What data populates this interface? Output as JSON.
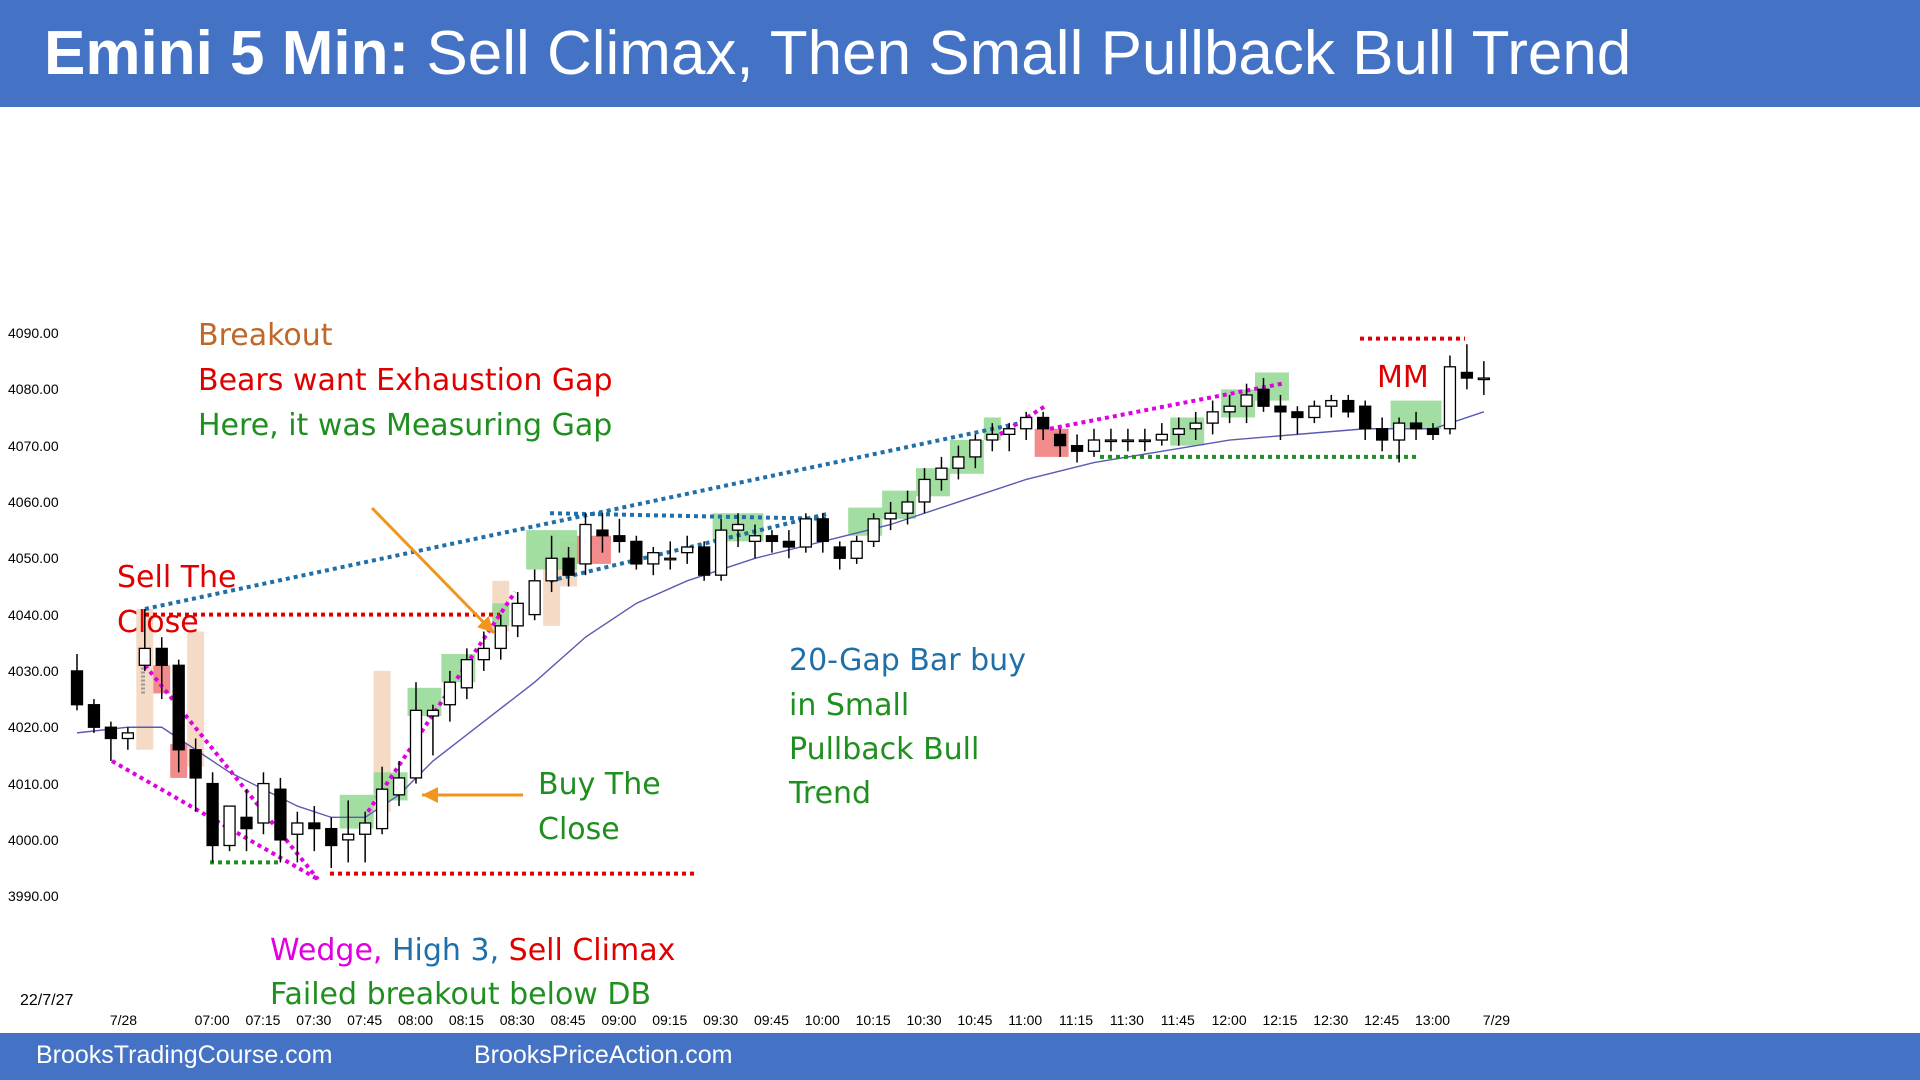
{
  "header": {
    "title_bold": "Emini 5 Min:",
    "title_rest": "Sell Climax, Then Small Pullback Bull Trend"
  },
  "footer": {
    "link1": "BrooksTradingCourse.com",
    "link2": "BrooksPriceAction.com"
  },
  "colors": {
    "header": "#4472c4",
    "bull_box": "#92d892",
    "bear_box": "#f07878",
    "tan_box": "#f3d3bb",
    "ema": "#5a5ab4",
    "magenta": "#e000e0",
    "blue_dots": "#1f6fa8",
    "red_dots": "#e00000",
    "green_dots": "#1f8f1f"
  },
  "chart_data": {
    "type": "candlestick",
    "title": "Emini 5 Min: Sell Climax, Then Small Pullback Bull Trend",
    "date_label": "22/7/27",
    "ylim": [
      3985,
      4100
    ],
    "y_ticks": [
      "4090.00",
      "4080.00",
      "4070.00",
      "4060.00",
      "4050.00",
      "4040.00",
      "4030.00",
      "4020.00",
      "4010.00",
      "4000.00",
      "3990.00"
    ],
    "y_tick_values": [
      4090,
      4080,
      4070,
      4060,
      4050,
      4040,
      4030,
      4020,
      4010,
      4000,
      3990
    ],
    "x_ticks": [
      "7/28",
      "07:00",
      "07:15",
      "07:30",
      "07:45",
      "08:00",
      "08:15",
      "08:30",
      "08:45",
      "09:00",
      "09:15",
      "09:30",
      "09:45",
      "10:00",
      "10:15",
      "10:30",
      "10:45",
      "11:00",
      "11:15",
      "11:30",
      "11:45",
      "12:00",
      "12:15",
      "12:30",
      "12:45",
      "13:00",
      "7/29"
    ],
    "x_tick_bars": [
      3,
      8,
      11,
      14,
      17,
      20,
      23,
      26,
      29,
      32,
      35,
      38,
      41,
      44,
      47,
      50,
      53,
      56,
      59,
      62,
      65,
      68,
      71,
      74,
      77,
      80,
      84
    ],
    "bars": [
      [
        4030,
        4033,
        4023,
        4024
      ],
      [
        4024,
        4025,
        4019,
        4020
      ],
      [
        4020,
        4021,
        4014,
        4018
      ],
      [
        4018,
        4020,
        4016,
        4019
      ],
      [
        4031,
        4041,
        4030,
        4034
      ],
      [
        4034,
        4036,
        4025,
        4031
      ],
      [
        4031,
        4032,
        4012,
        4016
      ],
      [
        4016,
        4018,
        4005,
        4011
      ],
      [
        4010,
        4012,
        3996,
        3999
      ],
      [
        3999,
        4006,
        3998,
        4006
      ],
      [
        4004,
        4009,
        3998,
        4002
      ],
      [
        4003,
        4012,
        4001,
        4010
      ],
      [
        4009,
        4011,
        3996,
        4000
      ],
      [
        4001,
        4005,
        3996,
        4003
      ],
      [
        4003,
        4006,
        3998,
        4002
      ],
      [
        4002,
        4004,
        3995,
        3999
      ],
      [
        4000,
        4007,
        3996,
        4001
      ],
      [
        4001,
        4005,
        3996,
        4003
      ],
      [
        4002,
        4013,
        4001,
        4009
      ],
      [
        4008,
        4014,
        4006,
        4011
      ],
      [
        4011,
        4028,
        4010,
        4023
      ],
      [
        4022,
        4024,
        4015,
        4023
      ],
      [
        4024,
        4030,
        4021,
        4028
      ],
      [
        4027,
        4034,
        4025,
        4032
      ],
      [
        4032,
        4037,
        4030,
        4034
      ],
      [
        4034,
        4040,
        4032,
        4038
      ],
      [
        4038,
        4044,
        4036,
        4042
      ],
      [
        4040,
        4048,
        4039,
        4046
      ],
      [
        4046,
        4054,
        4044,
        4050
      ],
      [
        4050,
        4052,
        4045,
        4047
      ],
      [
        4049,
        4058,
        4047,
        4056
      ],
      [
        4055,
        4058,
        4051,
        4054
      ],
      [
        4054,
        4057,
        4051,
        4053
      ],
      [
        4053,
        4054,
        4048,
        4049
      ],
      [
        4049,
        4052,
        4047,
        4051
      ],
      [
        4050,
        4053,
        4048,
        4050
      ],
      [
        4051,
        4054,
        4049,
        4052
      ],
      [
        4052,
        4053,
        4046,
        4047
      ],
      [
        4047,
        4057,
        4046,
        4055
      ],
      [
        4055,
        4058,
        4052,
        4056
      ],
      [
        4053,
        4056,
        4050,
        4054
      ],
      [
        4054,
        4055,
        4051,
        4053
      ],
      [
        4053,
        4055,
        4050,
        4052
      ],
      [
        4052,
        4058,
        4051,
        4057
      ],
      [
        4057,
        4058,
        4051,
        4053
      ],
      [
        4052,
        4053,
        4048,
        4050
      ],
      [
        4050,
        4054,
        4049,
        4053
      ],
      [
        4053,
        4058,
        4052,
        4057
      ],
      [
        4057,
        4060,
        4055,
        4058
      ],
      [
        4058,
        4062,
        4056,
        4060
      ],
      [
        4060,
        4066,
        4058,
        4064
      ],
      [
        4064,
        4068,
        4062,
        4066
      ],
      [
        4066,
        4070,
        4064,
        4068
      ],
      [
        4068,
        4072,
        4066,
        4071
      ],
      [
        4071,
        4074,
        4069,
        4072
      ],
      [
        4072,
        4074,
        4069,
        4073
      ],
      [
        4073,
        4076,
        4071,
        4075
      ],
      [
        4075,
        4076,
        4071,
        4073
      ],
      [
        4072,
        4073,
        4068,
        4070
      ],
      [
        4070,
        4072,
        4067,
        4069
      ],
      [
        4069,
        4073,
        4068,
        4071
      ],
      [
        4071,
        4073,
        4069,
        4071
      ],
      [
        4071,
        4073,
        4069,
        4071
      ],
      [
        4071,
        4073,
        4069,
        4071
      ],
      [
        4071,
        4074,
        4070,
        4072
      ],
      [
        4072,
        4075,
        4070,
        4073
      ],
      [
        4073,
        4076,
        4071,
        4074
      ],
      [
        4074,
        4078,
        4072,
        4076
      ],
      [
        4076,
        4079,
        4074,
        4077
      ],
      [
        4077,
        4081,
        4074,
        4079
      ],
      [
        4080,
        4082,
        4076,
        4077
      ],
      [
        4077,
        4079,
        4071,
        4076
      ],
      [
        4076,
        4077,
        4072,
        4075
      ],
      [
        4075,
        4078,
        4074,
        4077
      ],
      [
        4077,
        4079,
        4075,
        4078
      ],
      [
        4078,
        4079,
        4075,
        4076
      ],
      [
        4077,
        4078,
        4071,
        4073
      ],
      [
        4073,
        4075,
        4069,
        4071
      ],
      [
        4071,
        4075,
        4067,
        4074
      ],
      [
        4074,
        4076,
        4071,
        4073
      ],
      [
        4073,
        4074,
        4071,
        4072
      ],
      [
        4073,
        4086,
        4072,
        4084
      ],
      [
        4083,
        4088,
        4080,
        4082
      ],
      [
        4082,
        4085,
        4079,
        4082
      ]
    ],
    "ema": [
      [
        0,
        4019
      ],
      [
        3,
        4020
      ],
      [
        5,
        4020
      ],
      [
        7,
        4016
      ],
      [
        9,
        4012
      ],
      [
        11,
        4009
      ],
      [
        13,
        4006
      ],
      [
        15,
        4004
      ],
      [
        17,
        4004
      ],
      [
        19,
        4008
      ],
      [
        21,
        4014
      ],
      [
        24,
        4021
      ],
      [
        27,
        4028
      ],
      [
        30,
        4036
      ],
      [
        33,
        4042
      ],
      [
        36,
        4046
      ],
      [
        40,
        4050
      ],
      [
        44,
        4053
      ],
      [
        48,
        4056
      ],
      [
        52,
        4060
      ],
      [
        56,
        4064
      ],
      [
        60,
        4067
      ],
      [
        64,
        4069
      ],
      [
        68,
        4071
      ],
      [
        72,
        4072
      ],
      [
        76,
        4073
      ],
      [
        80,
        4073
      ],
      [
        83,
        4076
      ]
    ],
    "annotations": [
      {
        "text": "Breakout",
        "color": "#c0672a"
      },
      {
        "text": "Bears want Exhaustion Gap",
        "color": "#e00000"
      },
      {
        "text": "Here, it was Measuring Gap",
        "color": "#1f8f1f"
      },
      {
        "text": "Sell The",
        "color": "#e00000"
      },
      {
        "text": "Close",
        "color": "#e00000"
      },
      {
        "text": "Buy The",
        "color": "#1f8f1f"
      },
      {
        "text": "Close",
        "color": "#1f8f1f"
      },
      {
        "text": "20-Gap Bar buy",
        "color": "#1f6fa8"
      },
      {
        "text": "in Small",
        "color": "#1f8f1f"
      },
      {
        "text": "Pullback Bull",
        "color": "#1f8f1f"
      },
      {
        "text": "Trend",
        "color": "#1f8f1f"
      },
      {
        "text": "MM",
        "color": "#e00000"
      },
      {
        "text": "Wedge,",
        "color": "#e000e0"
      },
      {
        "text": "High 3,",
        "color": "#1f6fa8"
      },
      {
        "text": "Sell Climax",
        "color": "#e00000"
      },
      {
        "text": "Failed breakout below DB",
        "color": "#1f8f1f"
      }
    ]
  }
}
